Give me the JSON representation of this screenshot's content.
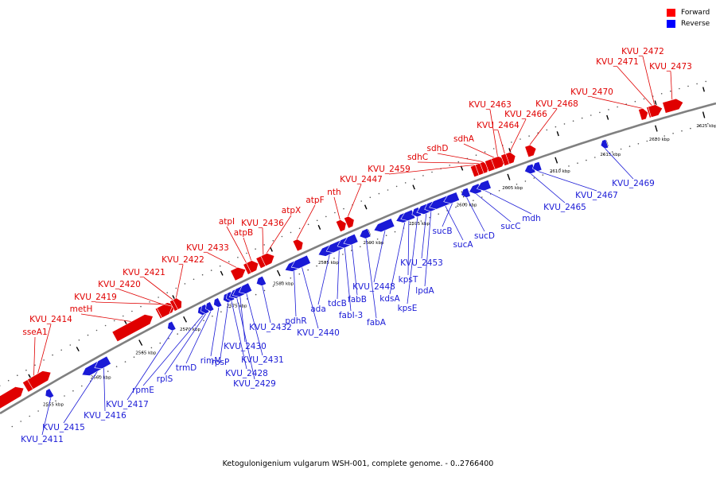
{
  "caption": "Ketogulonigenium vulgarum WSH-001, complete genome. - 0..2766400",
  "legend": [
    {
      "label": "Forward",
      "color": "#ff0000"
    },
    {
      "label": "Reverse",
      "color": "#0000ff"
    }
  ],
  "colors": {
    "forward": "#e00000",
    "reverse": "#1a1ad6",
    "backbone": "#808080"
  },
  "ticks": [
    "2555 kbp",
    "2560 kbp",
    "2565 kbp",
    "2570 kbp",
    "2575 kbp",
    "2580 kbp",
    "2585 kbp",
    "2590 kbp",
    "2595 kbp",
    "2600 kbp",
    "2605 kbp",
    "2610 kbp",
    "2615 kbp",
    "2620 kbp",
    "2625 kbp"
  ],
  "forward_genes": [
    "sseA1",
    "KVU_2414",
    "metH",
    "KVU_2419",
    "KVU_2420",
    "KVU_2421",
    "KVU_2422",
    "KVU_2433",
    "atpI",
    "atpB",
    "KVU_2436",
    "atpX",
    "atpF",
    "nth",
    "KVU_2447",
    "KVU_2459",
    "sdhC",
    "sdhD",
    "sdhA",
    "KVU_2463",
    "KVU_2464",
    "KVU_2466",
    "KVU_2468",
    "KVU_2470",
    "KVU_2471",
    "KVU_2472",
    "KVU_2473"
  ],
  "reverse_genes": [
    "KVU_2411",
    "KVU_2415",
    "KVU_2416",
    "KVU_2417",
    "rpmE",
    "rplS",
    "trmD",
    "rimM",
    "rpsP",
    "KVU_2428",
    "KVU_2429",
    "KVU_2430",
    "KVU_2431",
    "KVU_2432",
    "pdhR",
    "KVU_2440",
    "ada",
    "tdcB",
    "fabI-3",
    "fabB",
    "fabA",
    "KVU_2448",
    "kdsA",
    "kpsT",
    "kpsE",
    "KVU_2453",
    "lpdA",
    "sucA",
    "sucB",
    "sucD",
    "sucC",
    "mdh",
    "KVU_2465",
    "KVU_2467",
    "KVU_2469"
  ]
}
